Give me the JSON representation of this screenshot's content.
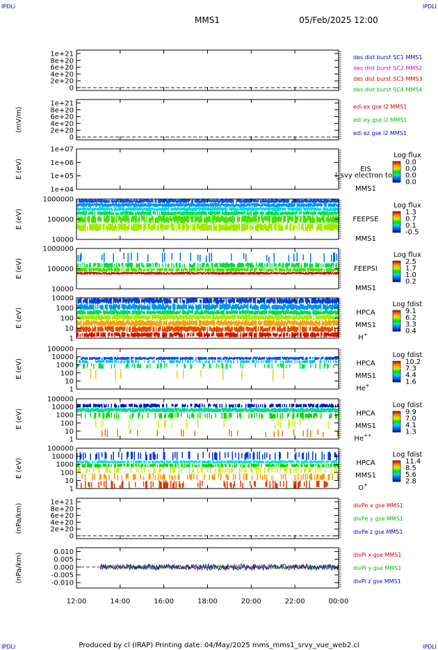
{
  "corner_left_top": "IPDLI",
  "corner_right_top": "IPDLI",
  "corner_left_bottom": "IPDLI",
  "corner_right_bottom": "IPDLI",
  "header": {
    "mission": "MMS1",
    "datetime": "05/Feb/2025 12:00"
  },
  "footer": "Produced by cl (IRAP)   Printing date: 04/May/2025   mms_mms1_srvy_vue_web2.cl",
  "colors": {
    "blue": "#0000cc",
    "magenta": "#cc00cc",
    "red": "#cc0000",
    "green": "#00bb00"
  },
  "chart_data": [
    {
      "type": "line",
      "ylabel": "",
      "yticks": [
        "1e+21",
        "8e+20",
        "6e+20",
        "4e+20",
        "2e+20",
        "0"
      ],
      "legend": [
        {
          "text": "des dist burst SC1 MMS1",
          "color": "#0000cc"
        },
        {
          "text": "des dist burst SC2 MMS2",
          "color": "#cc00cc"
        },
        {
          "text": "des dist burst SC3 MMS3",
          "color": "#cc0000"
        },
        {
          "text": "des dist burst SC4 MMS4",
          "color": "#00bb00"
        }
      ],
      "series": []
    },
    {
      "type": "line",
      "ylabel": "(mV/m)",
      "yticks": [
        "1e+21",
        "8e+20",
        "6e+20",
        "4e+20",
        "2e+20",
        "0"
      ],
      "legend": [
        {
          "text": "edi ex gse l2 MMS1",
          "color": "#cc0000"
        },
        {
          "text": "edi ey gse l2 MMS1",
          "color": "#00bb00"
        },
        {
          "text": "edi ez gse l2 MMS1",
          "color": "#0000cc"
        }
      ],
      "series": []
    },
    {
      "type": "heatmap",
      "ylabel": "E (eV)",
      "yticks": [
        "1e+07",
        "1e+06",
        "1e+05",
        "1e+04"
      ],
      "instrument": [
        "EIS",
        "MMS1"
      ],
      "overlay_text": "l_svy electron to",
      "colorbar": {
        "title": "Log flux",
        "ticks": [
          "0.0",
          "0.0",
          "0.0",
          "0.0"
        ]
      },
      "bands": []
    },
    {
      "type": "heatmap",
      "ylabel": "E (eV)",
      "yticks": [
        "1000000",
        "100000",
        "10000"
      ],
      "instrument": [
        "FEEPSE",
        "MMS1"
      ],
      "colorbar": {
        "title": "Log flux",
        "ticks": [
          "1.3",
          "0.7",
          "0.1",
          "-0.5"
        ]
      },
      "bands": [
        {
          "from": 0.0,
          "to": 0.1,
          "level": 0.15,
          "density": 0.95
        },
        {
          "from": 0.1,
          "to": 0.2,
          "level": 0.25,
          "density": 0.98
        },
        {
          "from": 0.2,
          "to": 0.3,
          "level": 0.35,
          "density": 0.98
        },
        {
          "from": 0.3,
          "to": 0.4,
          "level": 0.45,
          "density": 0.95
        },
        {
          "from": 0.4,
          "to": 0.6,
          "level": 0.55,
          "density": 0.9
        },
        {
          "from": 0.6,
          "to": 0.8,
          "level": 0.62,
          "density": 0.85
        }
      ]
    },
    {
      "type": "heatmap",
      "ylabel": "E (eV)",
      "yticks": [
        "1000000",
        "100000",
        "10000"
      ],
      "instrument": [
        "FEEPSI",
        "MMS1"
      ],
      "colorbar": {
        "title": "Log flux",
        "ticks": [
          "2.5",
          "1.7",
          "1.0",
          "0.2"
        ]
      },
      "bands": [
        {
          "from": 0.1,
          "to": 0.35,
          "level": 0.2,
          "density": 0.15
        },
        {
          "from": 0.35,
          "to": 0.48,
          "level": 0.45,
          "density": 0.7
        },
        {
          "from": 0.48,
          "to": 0.58,
          "level": 0.55,
          "density": 0.9
        },
        {
          "from": 0.58,
          "to": 0.65,
          "level": 0.98,
          "density": 1.0
        }
      ]
    },
    {
      "type": "heatmap",
      "ylabel": "E (eV)",
      "yticks": [
        "10000",
        "1000",
        "100",
        "10",
        "1"
      ],
      "instrument": [
        "HPCA",
        "MMS1"
      ],
      "species": "H",
      "species_sup": "+",
      "colorbar": {
        "title": "Log fdist",
        "ticks": [
          "9.1",
          "6.2",
          "3.3",
          "0.4"
        ]
      },
      "bands": [
        {
          "from": 0.0,
          "to": 0.15,
          "level": 0.12,
          "density": 0.9
        },
        {
          "from": 0.15,
          "to": 0.3,
          "level": 0.25,
          "density": 0.95
        },
        {
          "from": 0.3,
          "to": 0.42,
          "level": 0.45,
          "density": 0.97
        },
        {
          "from": 0.42,
          "to": 0.55,
          "level": 0.62,
          "density": 0.97
        },
        {
          "from": 0.55,
          "to": 0.7,
          "level": 0.78,
          "density": 0.95
        },
        {
          "from": 0.7,
          "to": 0.85,
          "level": 0.9,
          "density": 0.9
        },
        {
          "from": 0.85,
          "to": 0.98,
          "level": 0.97,
          "density": 0.8
        }
      ]
    },
    {
      "type": "heatmap",
      "ylabel": "E (eV)",
      "yticks": [
        "100000",
        "10000",
        "1000",
        "100",
        "10",
        "1"
      ],
      "instrument": [
        "HPCA",
        "MMS1"
      ],
      "species": "He",
      "species_sup": "+",
      "colorbar": {
        "title": "Log fdist",
        "ticks": [
          "10.2",
          "7.3",
          "4.4",
          "1.6"
        ]
      },
      "bands": [
        {
          "from": 0.2,
          "to": 0.28,
          "level": 0.15,
          "density": 0.9
        },
        {
          "from": 0.28,
          "to": 0.36,
          "level": 0.3,
          "density": 0.6
        },
        {
          "from": 0.36,
          "to": 0.5,
          "level": 0.45,
          "density": 0.3
        },
        {
          "from": 0.5,
          "to": 0.8,
          "level": 0.7,
          "density": 0.04
        }
      ]
    },
    {
      "type": "heatmap",
      "ylabel": "E (eV)",
      "yticks": [
        "100000",
        "10000",
        "1000",
        "100",
        "10",
        "1"
      ],
      "instrument": [
        "HPCA",
        "MMS1"
      ],
      "species": "He",
      "species_sup": "++",
      "colorbar": {
        "title": "Log fdist",
        "ticks": [
          "9.9",
          "7.0",
          "4.1",
          "1.3"
        ]
      },
      "bands": [
        {
          "from": 0.12,
          "to": 0.22,
          "level": 0.05,
          "density": 0.7
        },
        {
          "from": 0.22,
          "to": 0.34,
          "level": 0.4,
          "density": 1.0
        },
        {
          "from": 0.34,
          "to": 0.5,
          "level": 0.5,
          "density": 0.4
        },
        {
          "from": 0.5,
          "to": 0.75,
          "level": 0.65,
          "density": 0.12
        },
        {
          "from": 0.75,
          "to": 0.95,
          "level": 0.85,
          "density": 0.08
        }
      ]
    },
    {
      "type": "heatmap",
      "ylabel": "E (eV)",
      "yticks": [
        "100000",
        "10000",
        "1000",
        "100",
        "10",
        "1"
      ],
      "instrument": [
        "HPCA",
        "MMS1"
      ],
      "species": "O",
      "species_sup": "+",
      "colorbar": {
        "title": "Log fdist",
        "ticks": [
          "11.4",
          "8.5",
          "5.6",
          "2.8"
        ]
      },
      "bands": [
        {
          "from": 0.08,
          "to": 0.3,
          "level": 0.1,
          "density": 0.3
        },
        {
          "from": 0.3,
          "to": 0.38,
          "level": 0.35,
          "density": 0.9
        },
        {
          "from": 0.38,
          "to": 0.48,
          "level": 0.5,
          "density": 0.7
        },
        {
          "from": 0.48,
          "to": 0.62,
          "level": 0.65,
          "density": 0.4
        },
        {
          "from": 0.62,
          "to": 0.8,
          "level": 0.8,
          "density": 0.35
        },
        {
          "from": 0.8,
          "to": 1.0,
          "level": 0.92,
          "density": 0.3
        }
      ]
    },
    {
      "type": "line",
      "ylabel": "(nPa/km)",
      "yticks": [
        "1e+21",
        "8e+20",
        "6e+20",
        "4e+20",
        "2e+20",
        "0"
      ],
      "legend": [
        {
          "text": "divPe x gse MMS1",
          "color": "#cc0000"
        },
        {
          "text": "divPe y gse MMS1",
          "color": "#00bb00"
        },
        {
          "text": "divPe z gse MMS1",
          "color": "#0000cc"
        }
      ],
      "series": []
    },
    {
      "type": "line",
      "ylabel": "(nPa/km)",
      "yticks": [
        "0.010",
        "0.005",
        "0.000",
        "-0.005",
        "-0.010"
      ],
      "ylim": [
        -0.0135,
        0.0125
      ],
      "legend": [
        {
          "text": "divPi x gse MMS1",
          "color": "#cc0000"
        },
        {
          "text": "divPi y gse MMS1",
          "color": "#00bb00"
        },
        {
          "text": "divPi z gse MMS1",
          "color": "#0000cc"
        }
      ],
      "xlim": [
        12,
        24
      ],
      "data_start": 13.1,
      "amplitude": 0.0035
    }
  ],
  "xaxis": {
    "ticks": [
      "12:00",
      "14:00",
      "16:00",
      "18:00",
      "20:00",
      "22:00",
      "00:00"
    ]
  }
}
